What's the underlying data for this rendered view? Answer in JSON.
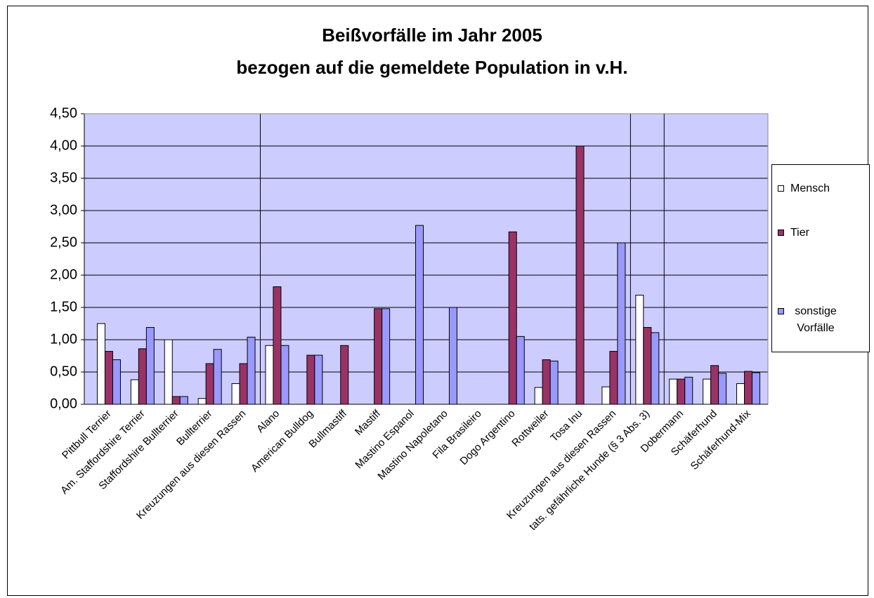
{
  "chart_data": {
    "type": "bar",
    "title": [
      "Beißvorfälle im Jahr 2005",
      "bezogen auf die gemeldete Population in v.H."
    ],
    "categories": [
      "Pittbull Terrier",
      "Am. Staffordshire Terrier",
      "Staffordshire Bullterrier",
      "Bullterrier",
      "Kreuzungen aus diesen Rassen",
      "Alano",
      "American Bulldog",
      "Bullmastiff",
      "Mastiff",
      "Mastino Espanol",
      "Mastino Napoletano",
      "Fila Brasileiro",
      "Dogo Argentino",
      "Rottweiler",
      "Tosa Inu",
      "Kreuzungen aus  diesen Rassen",
      "tats. gefährliche Hunde (§ 3 Abs. 3)",
      "Dobermann",
      "Schäferhund",
      "Schäferhund-Mix"
    ],
    "series": [
      {
        "name": "Mensch",
        "color": "#ffffff",
        "values": [
          1.25,
          0.38,
          1.0,
          0.09,
          0.32,
          0.91,
          0,
          0,
          0,
          0,
          0,
          0,
          0,
          0.26,
          0,
          0.27,
          1.69,
          0.39,
          0.39,
          0.32
        ]
      },
      {
        "name": "Tier",
        "color": "#993366",
        "values": [
          0.82,
          0.86,
          0.12,
          0.63,
          0.63,
          1.82,
          0.76,
          0.91,
          1.48,
          0,
          0,
          0,
          2.67,
          0.69,
          4.0,
          0.82,
          1.19,
          0.39,
          0.6,
          0.51
        ]
      },
      {
        "name": "sonstige Vorfälle",
        "color": "#9999ff",
        "values": [
          0.69,
          1.19,
          0.12,
          0.85,
          1.04,
          0.91,
          0.76,
          0,
          1.48,
          2.77,
          1.5,
          0,
          1.05,
          0.67,
          0,
          2.5,
          1.11,
          0.42,
          0.48,
          0.49
        ]
      }
    ],
    "ylim": [
      0,
      4.5
    ],
    "yticks": [
      {
        "value": 0,
        "label": "0,00"
      },
      {
        "value": 0.5,
        "label": "0,50"
      },
      {
        "value": 1,
        "label": "1,00"
      },
      {
        "value": 1.5,
        "label": "1,50"
      },
      {
        "value": 2,
        "label": "2,00"
      },
      {
        "value": 2.5,
        "label": "2,50"
      },
      {
        "value": 3,
        "label": "3,00"
      },
      {
        "value": 3.5,
        "label": "3,50"
      },
      {
        "value": 4,
        "label": "4,00"
      },
      {
        "value": 4.5,
        "label": "4,50"
      }
    ],
    "grid": true,
    "plot_background": "#ccccff",
    "legend": "right"
  }
}
